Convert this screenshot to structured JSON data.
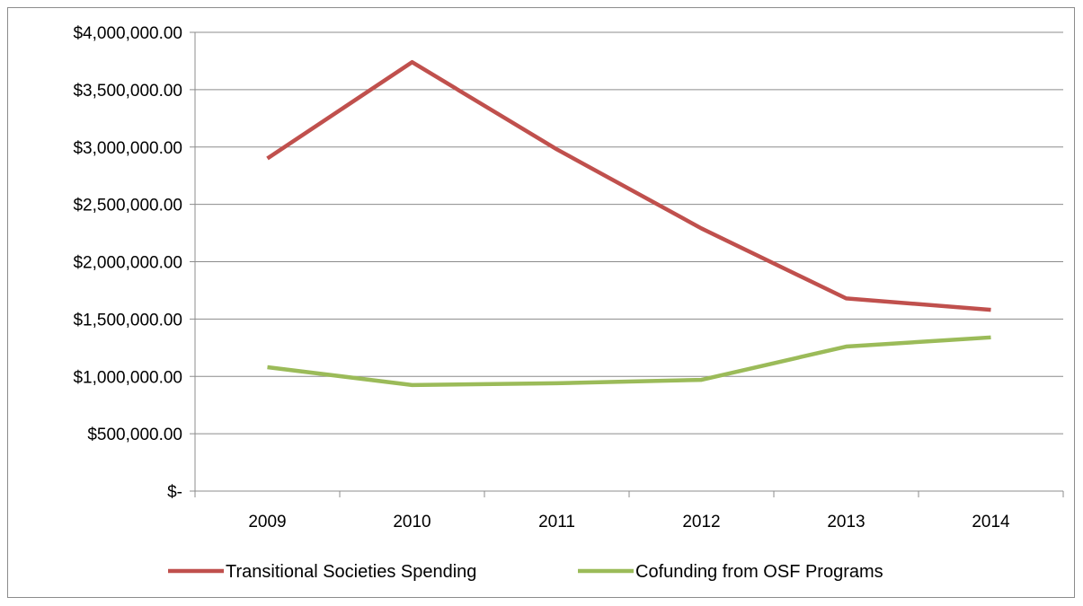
{
  "chart_data": {
    "type": "line",
    "title": "",
    "xlabel": "",
    "ylabel": "",
    "categories": [
      "2009",
      "2010",
      "2011",
      "2012",
      "2013",
      "2014"
    ],
    "ylim": [
      0,
      4000000
    ],
    "yticks": [
      0,
      500000,
      1000000,
      1500000,
      2000000,
      2500000,
      3000000,
      3500000,
      4000000
    ],
    "ytick_labels": [
      "$-",
      "$500,000.00",
      "$1,000,000.00",
      "$1,500,000.00",
      "$2,000,000.00",
      "$2,500,000.00",
      "$3,000,000.00",
      "$3,500,000.00",
      "$4,000,000.00"
    ],
    "grid": "horizontal",
    "legend_position": "bottom",
    "series": [
      {
        "name": "Transitional Societies Spending",
        "color": "#c0504d",
        "values": [
          2900000,
          3740000,
          2980000,
          2290000,
          1680000,
          1580000
        ]
      },
      {
        "name": "Cofunding from OSF Programs",
        "color": "#9bbb59",
        "values": [
          1080000,
          925000,
          940000,
          970000,
          1260000,
          1340000
        ]
      }
    ]
  }
}
